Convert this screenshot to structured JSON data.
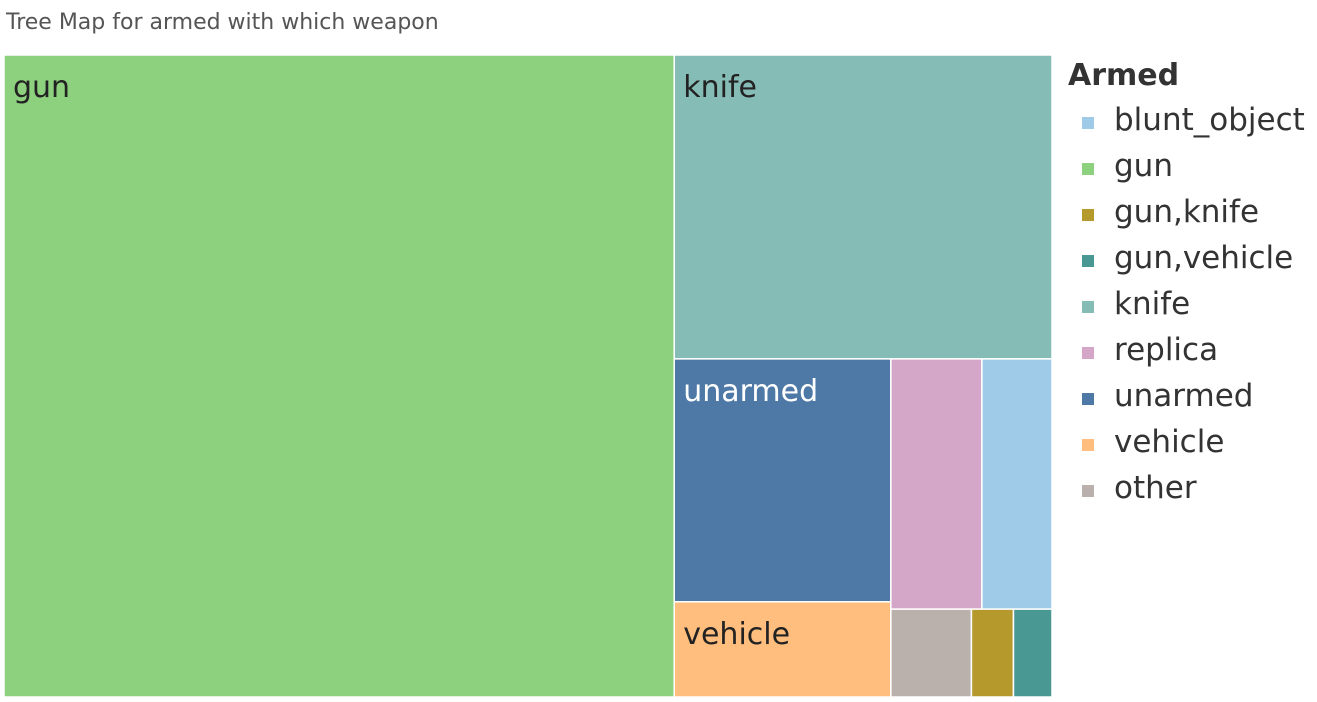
{
  "chart_data": {
    "type": "treemap",
    "title": "Tree Map for armed with which weapon",
    "legend_title": "Armed",
    "legend_position": "right",
    "items": [
      {
        "name": "gun",
        "value": 1398,
        "color": "#8dd17e",
        "label": "gun",
        "label_color": "#222222"
      },
      {
        "name": "knife",
        "value": 373,
        "color": "#86bcb6",
        "label": "knife",
        "label_color": "#222222"
      },
      {
        "name": "unarmed",
        "value": 171,
        "color": "#4e79a7",
        "label": "unarmed",
        "label_color": "#ffffff"
      },
      {
        "name": "vehicle",
        "value": 67,
        "color": "#ffbe7d",
        "label": "vehicle",
        "label_color": "#222222"
      },
      {
        "name": "replica",
        "value": 74,
        "color": "#d4a6c8",
        "label": "",
        "label_color": "#222222"
      },
      {
        "name": "blunt_object",
        "value": 57,
        "color": "#a0cbe8",
        "label": "",
        "label_color": "#222222"
      },
      {
        "name": "other",
        "value": 23,
        "color": "#bab0ac",
        "label": "",
        "label_color": "#222222"
      },
      {
        "name": "gun,knife",
        "value": 12,
        "color": "#b6992d",
        "label": "",
        "label_color": "#222222"
      },
      {
        "name": "gun,vehicle",
        "value": 11,
        "color": "#499894",
        "label": "",
        "label_color": "#222222"
      }
    ],
    "legend": [
      {
        "label": "blunt_object",
        "color": "#a0cbe8"
      },
      {
        "label": "gun",
        "color": "#8dd17e"
      },
      {
        "label": "gun,knife",
        "color": "#b6992d"
      },
      {
        "label": "gun,vehicle",
        "color": "#499894"
      },
      {
        "label": "knife",
        "color": "#86bcb6"
      },
      {
        "label": "replica",
        "color": "#d4a6c8"
      },
      {
        "label": "unarmed",
        "color": "#4e79a7"
      },
      {
        "label": "vehicle",
        "color": "#ffbe7d"
      },
      {
        "label": "other",
        "color": "#bab0ac"
      }
    ]
  }
}
